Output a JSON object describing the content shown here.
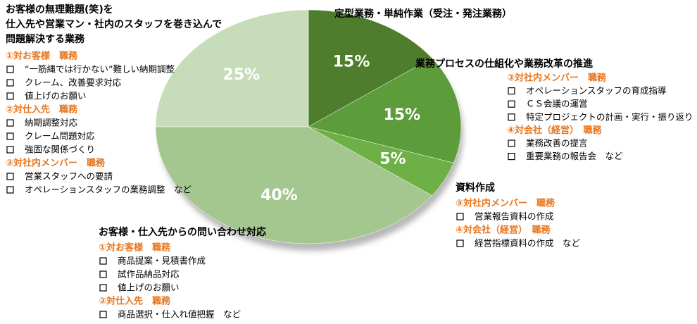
{
  "chart_data": {
    "type": "pie",
    "values": [
      15,
      15,
      5,
      40,
      25
    ],
    "value_labels": [
      "15%",
      "15%",
      "5%",
      "40%",
      "25%"
    ],
    "colors": [
      "#4e7d2d",
      "#5c9c3a",
      "#6cb046",
      "#a3c78e",
      "#c7ddba"
    ],
    "annotations": [
      {
        "title": [
          "お客様の無理難題(笑)を",
          "仕入先や営業マン・社内のスタッフを巻き込んで",
          "問題解決する業務"
        ],
        "sections": [
          {
            "heading": "①対お客様　職務",
            "items": [
              "“一筋縄では行かない”難しい納期調整",
              "クレーム、改善要求対応",
              "値上げのお願い"
            ]
          },
          {
            "heading": "②対仕入先　職務",
            "items": [
              "納期調整対応",
              "クレーム問題対応",
              "強固な関係づくり"
            ]
          },
          {
            "heading": "③対社内メンバー　職務",
            "items": [
              "営業スタッフへの要請",
              "オペレーションスタッフの業務調整　など"
            ]
          }
        ]
      },
      {
        "title": [
          "定型業務・単純作業（受注・発注業務）"
        ],
        "sections": []
      },
      {
        "title": [
          "業務プロセスの仕組化や業務改革の推進"
        ],
        "sections": [
          {
            "heading": "③対社内メンバー　職務",
            "items": [
              "オペレーションスタッフの育成指導",
              "ＣＳ会議の運営",
              "特定プロジェクトの計画・実行・振り返り"
            ]
          },
          {
            "heading": "④対会社（経営）　職務",
            "items": [
              "業務改善の提言",
              "重要業務の報告会　など"
            ]
          }
        ]
      },
      {
        "title": [
          "資料作成"
        ],
        "sections": [
          {
            "heading": "③対社内メンバー　職務",
            "items": [
              "営業報告資料の作成"
            ]
          },
          {
            "heading": "④対会社（経営）　職務",
            "items": [
              "経営指標資料の作成　など"
            ]
          }
        ]
      },
      {
        "title": [
          "お客様・仕入先からの問い合わせ対応"
        ],
        "sections": [
          {
            "heading": "①対お客様　職務",
            "items": [
              "商品提案・見積書作成",
              "試作品納品対応",
              "値上げのお願い"
            ]
          },
          {
            "heading": "②対仕入先　職務",
            "items": [
              "商品選択・仕入れ値把握　など"
            ]
          }
        ]
      }
    ]
  }
}
